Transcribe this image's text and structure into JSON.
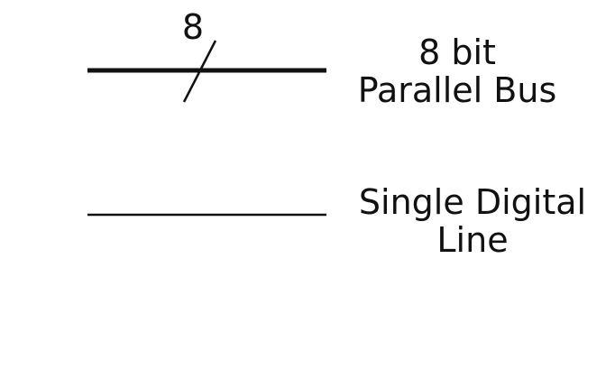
{
  "symbols": [
    {
      "id": "parallel-bus",
      "bus_width": "8",
      "label_lines": [
        "8 bit",
        "Parallel Bus"
      ]
    },
    {
      "id": "single-line",
      "label_lines": [
        "Single Digital",
        "Line"
      ]
    }
  ],
  "colors": {
    "stroke": "#111111",
    "background": "#ffffff"
  }
}
